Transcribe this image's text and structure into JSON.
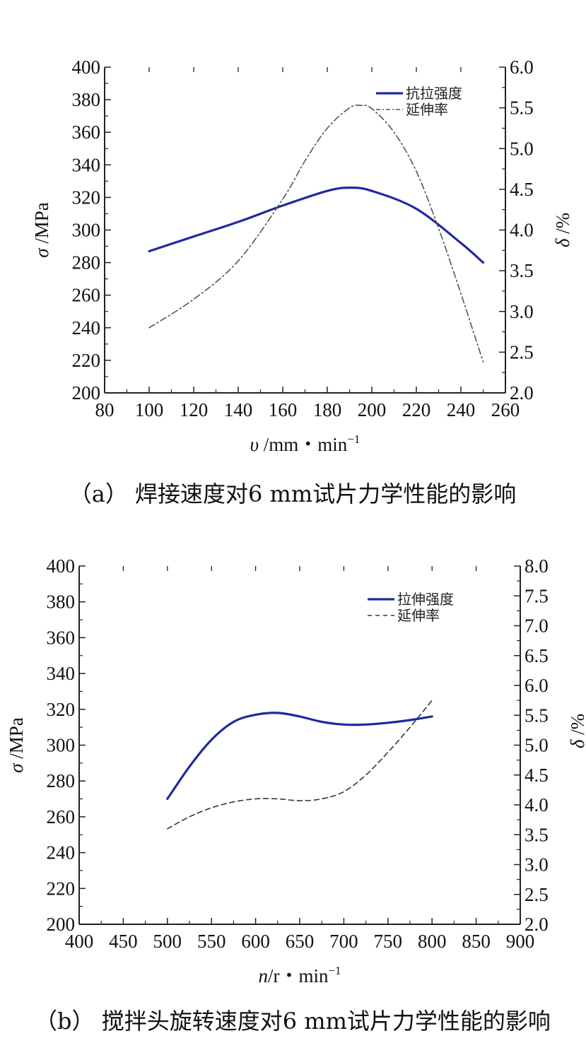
{
  "chart_data": [
    {
      "type": "line",
      "caption": "（a） 焊接速度对6 mm试片力学性能的影响",
      "xlabel_var": "υ",
      "xlabel_unit": " /mm・min",
      "xlabel_sup": "−1",
      "ylabel_left_var": "σ",
      "ylabel_left_unit": " /MPa",
      "ylabel_right_var": "δ",
      "ylabel_right_unit": " /%",
      "xlim": [
        80,
        260
      ],
      "xticks": [
        "80",
        "100",
        "120",
        "140",
        "160",
        "180",
        "200",
        "220",
        "240",
        "260"
      ],
      "ylim_left": [
        200,
        400
      ],
      "yticks_left": [
        "200",
        "220",
        "240",
        "260",
        "280",
        "300",
        "320",
        "340",
        "360",
        "380",
        "400"
      ],
      "ylim_right": [
        2.0,
        6.0
      ],
      "yticks_right": [
        "2.0",
        "2.5",
        "3.0",
        "3.5",
        "4.0",
        "4.5",
        "5.0",
        "5.5",
        "6.0"
      ],
      "legend_position": "top-right",
      "series": [
        {
          "name": "抗拉强度",
          "axis": "left",
          "style": "solid",
          "color": "#1f2a9e",
          "x": [
            100,
            120,
            140,
            160,
            180,
            190,
            200,
            220,
            240,
            250
          ],
          "y": [
            287,
            296,
            305,
            315,
            324,
            326,
            324,
            313,
            292,
            280
          ]
        },
        {
          "name": "延伸率",
          "axis": "right",
          "style": "dashdot",
          "color": "#555555",
          "x": [
            100,
            120,
            140,
            160,
            170,
            180,
            190,
            195,
            200,
            210,
            220,
            230,
            240,
            250
          ],
          "y": [
            2.8,
            3.15,
            3.62,
            4.38,
            4.85,
            5.25,
            5.5,
            5.53,
            5.49,
            5.2,
            4.72,
            4.02,
            3.22,
            2.38
          ]
        }
      ]
    },
    {
      "type": "line",
      "caption": "（b） 搅拌头旋转速度对6 mm试片力学性能的影响",
      "xlabel_var": "n",
      "xlabel_unit": "/r・min",
      "xlabel_sup": "−1",
      "ylabel_left_var": "σ",
      "ylabel_left_unit": " /MPa",
      "ylabel_right_var": "δ",
      "ylabel_right_unit": " /%",
      "xlim": [
        400,
        900
      ],
      "xticks": [
        "400",
        "450",
        "500",
        "550",
        "600",
        "650",
        "700",
        "750",
        "800",
        "850",
        "900"
      ],
      "ylim_left": [
        200,
        400
      ],
      "yticks_left": [
        "200",
        "220",
        "240",
        "260",
        "280",
        "300",
        "320",
        "340",
        "360",
        "380",
        "400"
      ],
      "ylim_right": [
        2.0,
        8.0
      ],
      "yticks_right": [
        "2.0",
        "2.5",
        "3.0",
        "3.5",
        "4.0",
        "4.5",
        "5.0",
        "5.5",
        "6.0",
        "6.5",
        "7.0",
        "7.5",
        "8.0"
      ],
      "legend_position": "top-right",
      "series": [
        {
          "name": "拉伸强度",
          "axis": "left",
          "style": "solid",
          "color": "#1f2a9e",
          "x": [
            500,
            525,
            550,
            575,
            600,
            625,
            650,
            675,
            700,
            725,
            750,
            775,
            800
          ],
          "y": [
            270,
            288,
            303,
            313,
            317,
            318,
            316,
            313,
            311.5,
            311.5,
            312.5,
            314,
            316
          ]
        },
        {
          "name": "延伸率",
          "axis": "right",
          "style": "dashed",
          "color": "#333333",
          "x": [
            500,
            525,
            550,
            575,
            600,
            625,
            650,
            675,
            700,
            725,
            750,
            775,
            800
          ],
          "y": [
            3.6,
            3.8,
            3.95,
            4.05,
            4.1,
            4.1,
            4.07,
            4.1,
            4.22,
            4.5,
            4.88,
            5.3,
            5.75
          ]
        }
      ]
    }
  ]
}
